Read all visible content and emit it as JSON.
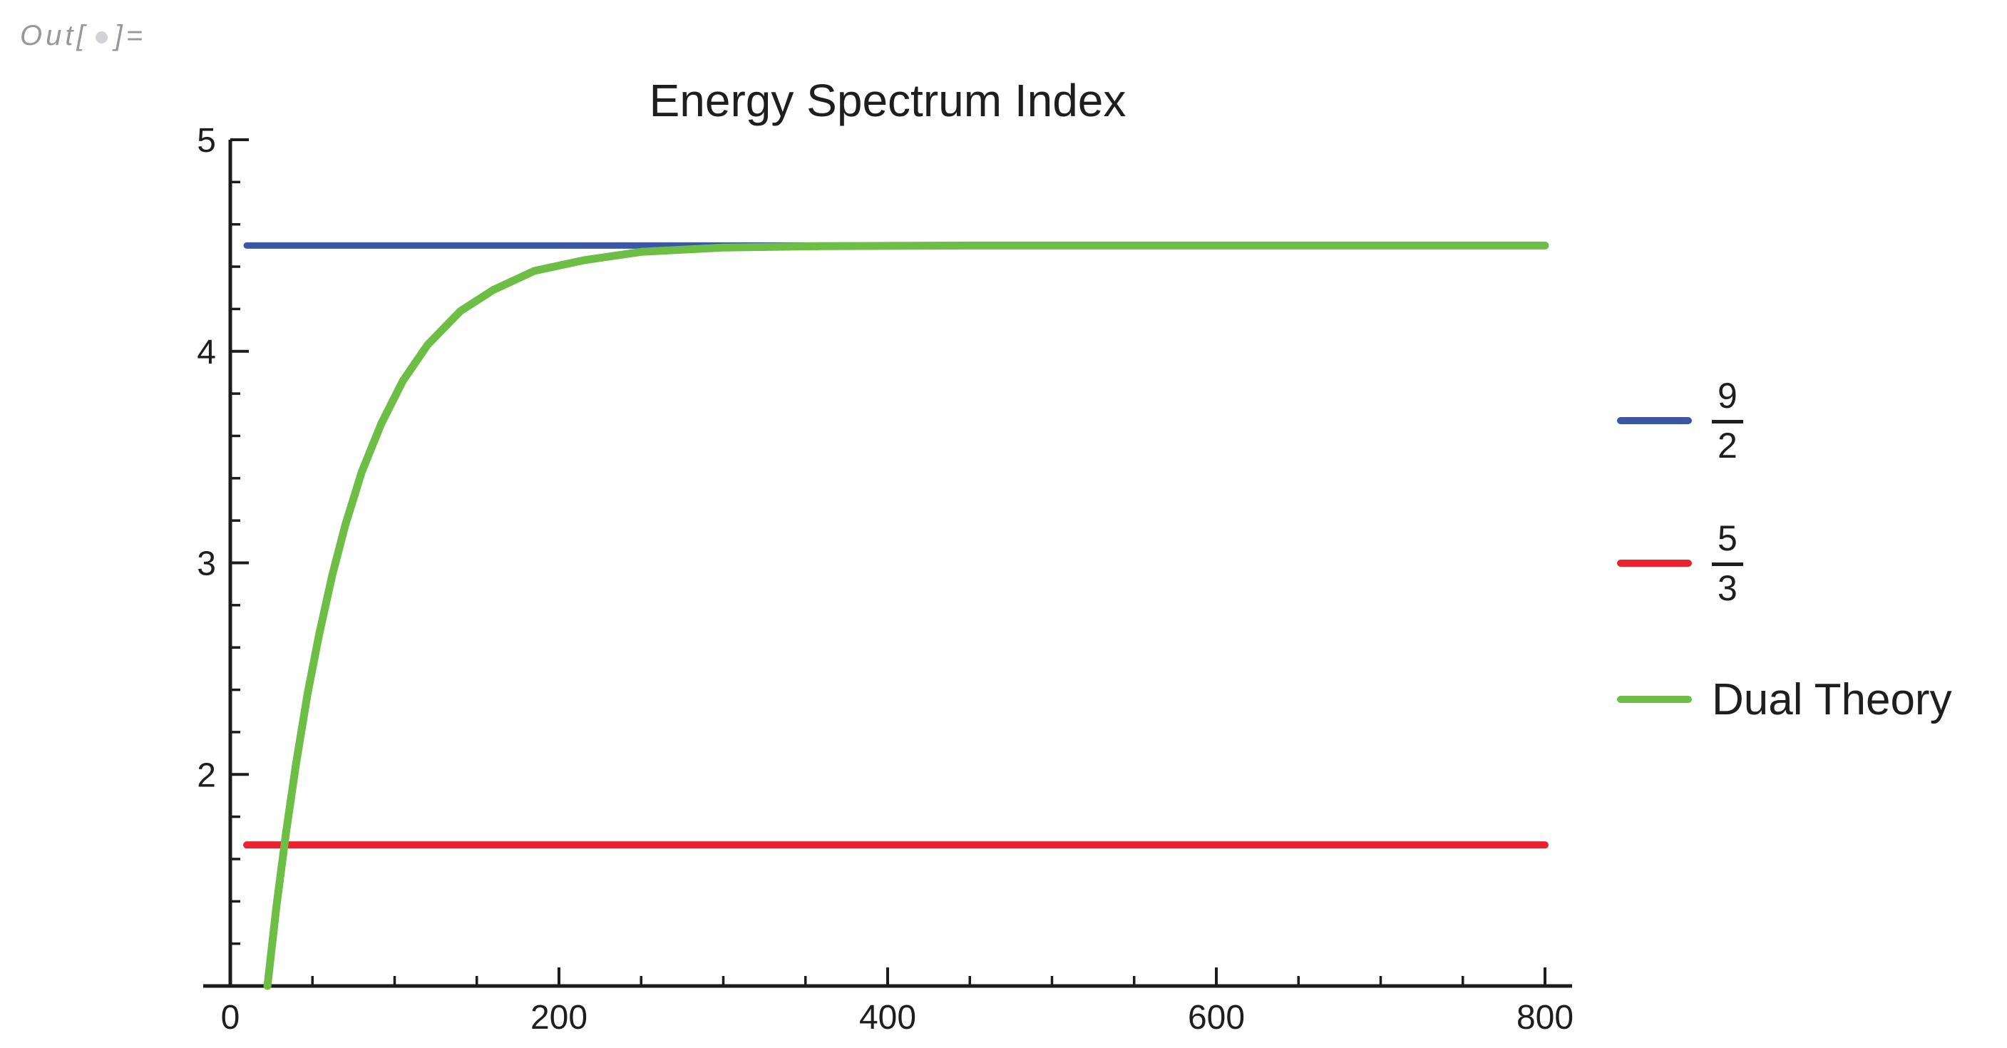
{
  "out_label": {
    "prefix": "Out[",
    "bullet": "",
    "suffix": "]="
  },
  "chart_data": {
    "type": "line",
    "title": "Energy Spectrum Index",
    "xlabel": "",
    "ylabel": "",
    "xlim": [
      0,
      800
    ],
    "ylim": [
      1,
      5
    ],
    "grid": false,
    "legend_position": "right-outside",
    "axes_color": "#1c1c1c",
    "x_ticks": {
      "major": [
        0,
        200,
        400,
        600,
        800
      ],
      "minor_step": 50
    },
    "y_ticks": {
      "major": [
        2,
        3,
        4,
        5
      ],
      "minor_step": 0.2
    },
    "series": [
      {
        "name": "9/2",
        "kind": "hline",
        "value": 4.5,
        "x_start": 10,
        "x_end": 800,
        "color": "#3b56a7",
        "width": 9
      },
      {
        "name": "5/3",
        "kind": "hline",
        "value": 1.6667,
        "x_start": 10,
        "x_end": 800,
        "color": "#ec2130",
        "width": 10
      },
      {
        "name": "Dual Theory",
        "kind": "curve",
        "color": "#6cbe45",
        "width": 11,
        "asymptote": 4.5,
        "points": [
          [
            22.6,
            1.0
          ],
          [
            28,
            1.37
          ],
          [
            34,
            1.73
          ],
          [
            40,
            2.05
          ],
          [
            47,
            2.38
          ],
          [
            54,
            2.66
          ],
          [
            62,
            2.94
          ],
          [
            70,
            3.18
          ],
          [
            80,
            3.43
          ],
          [
            92,
            3.66
          ],
          [
            105,
            3.86
          ],
          [
            120,
            4.03
          ],
          [
            140,
            4.19
          ],
          [
            160,
            4.29
          ],
          [
            185,
            4.38
          ],
          [
            215,
            4.43
          ],
          [
            250,
            4.47
          ],
          [
            300,
            4.49
          ],
          [
            360,
            4.497
          ],
          [
            450,
            4.5
          ],
          [
            550,
            4.5
          ],
          [
            650,
            4.5
          ],
          [
            720,
            4.5
          ],
          [
            800,
            4.5
          ]
        ]
      }
    ],
    "legend": [
      {
        "type": "fraction",
        "numerator": "9",
        "denominator": "2",
        "color": "#3b56a7"
      },
      {
        "type": "fraction",
        "numerator": "5",
        "denominator": "3",
        "color": "#ec2130"
      },
      {
        "type": "text",
        "label": "Dual Theory",
        "color": "#6cbe45"
      }
    ]
  }
}
